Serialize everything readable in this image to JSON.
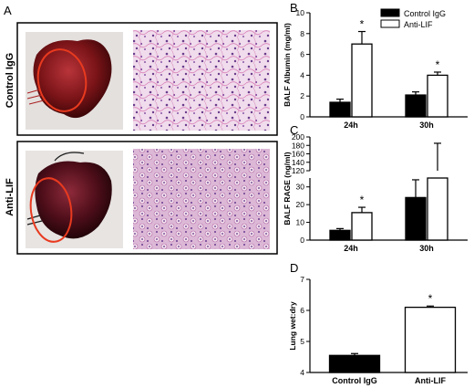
{
  "panels": {
    "A": {
      "letter": "A",
      "rows": [
        {
          "label": "Control IgG"
        },
        {
          "label": "Anti-LIF"
        }
      ]
    }
  },
  "chart_data": [
    {
      "panel": "B",
      "type": "bar",
      "ylabel": "BALF Albumin (mg/ml)",
      "categories": [
        "24h",
        "30h"
      ],
      "ylim": [
        0,
        10
      ],
      "yticks": [
        0,
        2,
        4,
        6,
        8,
        10
      ],
      "series": [
        {
          "name": "Control IgG",
          "color": "#000000",
          "values": [
            1.4,
            2.1
          ],
          "errors": [
            0.3,
            0.3
          ]
        },
        {
          "name": "Anti-LIF",
          "color": "#ffffff",
          "values": [
            7.0,
            4.0
          ],
          "errors": [
            1.2,
            0.3
          ]
        }
      ],
      "significance": [
        "*",
        "*"
      ],
      "legend": "top-right"
    },
    {
      "panel": "C",
      "type": "bar",
      "ylabel": "BALF RAGE (ng/ml)",
      "categories": [
        "24h",
        "30h"
      ],
      "broken_axis": true,
      "ylim_lower": [
        0,
        35
      ],
      "yticks_lower": [
        0,
        10,
        20,
        30
      ],
      "ylim_upper": [
        120,
        200
      ],
      "yticks_upper": [
        120,
        140,
        160,
        180,
        200
      ],
      "series": [
        {
          "name": "Control IgG",
          "color": "#000000",
          "values": [
            5.5,
            24
          ],
          "errors": [
            1.0,
            10
          ]
        },
        {
          "name": "Anti-LIF",
          "color": "#ffffff",
          "values": [
            15.5,
            120
          ],
          "errors": [
            3.0,
            65
          ]
        }
      ],
      "significance": [
        "*",
        ""
      ]
    },
    {
      "panel": "D",
      "type": "bar",
      "ylabel": "Lung wet:dry",
      "categories": [
        "Control IgG",
        "Anti-LIF"
      ],
      "ylim": [
        4,
        7
      ],
      "yticks": [
        4,
        5,
        6,
        7
      ],
      "values": [
        4.55,
        6.1
      ],
      "errors": [
        0.06,
        0.04
      ],
      "colors": [
        "#000000",
        "#ffffff"
      ],
      "significance": [
        "",
        "*"
      ]
    }
  ]
}
